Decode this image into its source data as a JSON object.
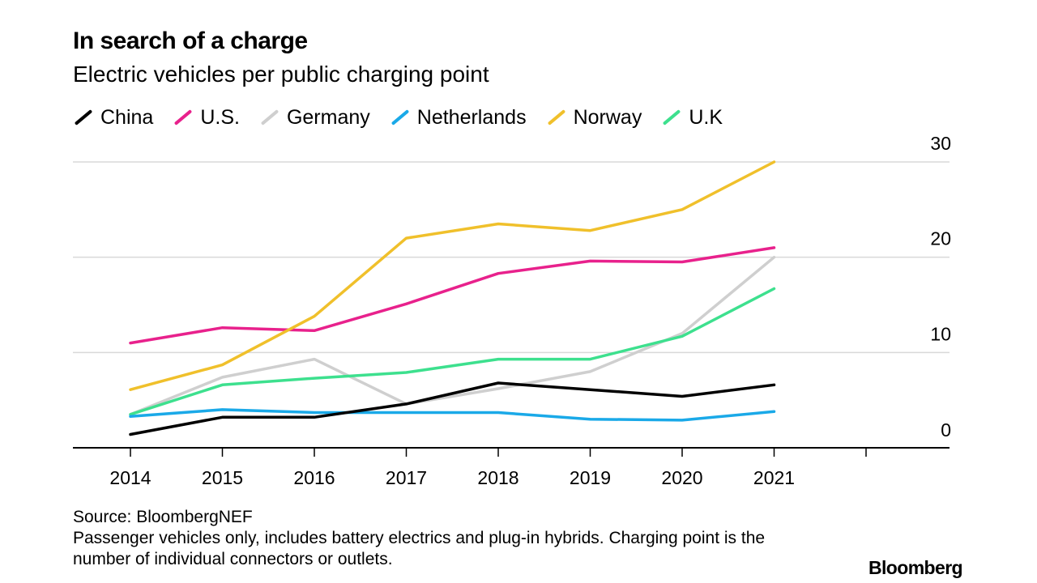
{
  "chart_data": {
    "type": "line",
    "title": "In search of a charge",
    "subtitle": "Electric vehicles per public charging point",
    "xlabel": "",
    "ylabel": "",
    "categories": [
      "2014",
      "2015",
      "2016",
      "2017",
      "2018",
      "2019",
      "2020",
      "2021"
    ],
    "ylim": [
      0,
      30
    ],
    "yticks": [
      "30",
      "20",
      "10",
      "0"
    ],
    "grid": true,
    "y_axis_side": "right",
    "legend_position": "top",
    "series": [
      {
        "name": "China",
        "color": "#000000",
        "values": [
          1.4,
          3.2,
          3.2,
          4.6,
          6.8,
          6.1,
          5.4,
          6.6
        ]
      },
      {
        "name": "U.S.",
        "color": "#e8218c",
        "values": [
          11.0,
          12.6,
          12.3,
          15.1,
          18.3,
          19.6,
          19.5,
          21.0
        ]
      },
      {
        "name": "Germany",
        "color": "#cfcfcf",
        "values": [
          3.5,
          7.4,
          9.3,
          4.6,
          6.2,
          8.0,
          12.0,
          20.0
        ]
      },
      {
        "name": "Netherlands",
        "color": "#1aa9e8",
        "values": [
          3.3,
          4.0,
          3.7,
          3.7,
          3.7,
          3.0,
          2.9,
          3.8
        ]
      },
      {
        "name": "Norway",
        "color": "#f0c02b",
        "values": [
          6.1,
          8.7,
          13.8,
          22.0,
          23.5,
          22.8,
          25.0,
          30.0
        ]
      },
      {
        "name": "U.K",
        "color": "#3de08e",
        "values": [
          3.5,
          6.6,
          7.3,
          7.9,
          9.3,
          9.3,
          11.7,
          16.7
        ]
      }
    ]
  },
  "source": "Source: BloombergNEF",
  "note": "Passenger vehicles only, includes battery electrics and plug-in hybrids. Charging point is the number of individual connectors or outlets.",
  "brand": "Bloomberg"
}
